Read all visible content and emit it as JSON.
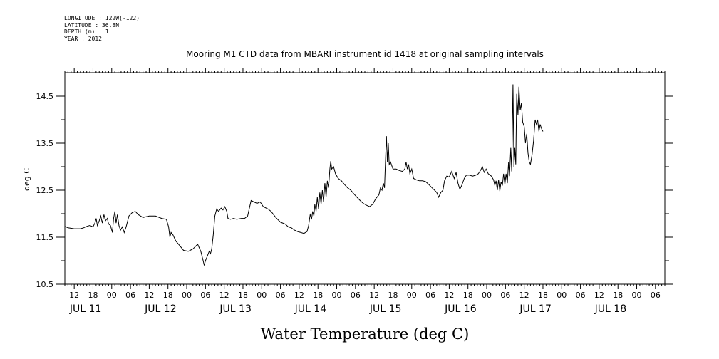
{
  "header": {
    "longitude": "LONGITUDE : 122W(-122)",
    "latitude": "LATITUDE : 36.8N",
    "depth": "DEPTH (m) : 1",
    "year": "YEAR : 2012"
  },
  "chart_data": {
    "type": "line",
    "title": "Mooring M1 CTD data from MBARI instrument id 1418 at original sampling intervals",
    "xlabel": "Water Temperature (deg C)",
    "ylabel": "deg C",
    "xlim_hours": [
      9,
      201
    ],
    "ylim": [
      10.5,
      15.0
    ],
    "yticks": [
      10.5,
      11.5,
      12.5,
      13.5,
      14.5
    ],
    "yticks_minor": [
      11.0,
      12.0,
      13.0,
      14.0
    ],
    "x_hour_ticks": [
      {
        "h": 12,
        "label": "12"
      },
      {
        "h": 18,
        "label": "18"
      },
      {
        "h": 24,
        "label": "00"
      },
      {
        "h": 30,
        "label": "06"
      },
      {
        "h": 36,
        "label": "12"
      },
      {
        "h": 42,
        "label": "18"
      },
      {
        "h": 48,
        "label": "00"
      },
      {
        "h": 54,
        "label": "06"
      },
      {
        "h": 60,
        "label": "12"
      },
      {
        "h": 66,
        "label": "18"
      },
      {
        "h": 72,
        "label": "00"
      },
      {
        "h": 78,
        "label": "06"
      },
      {
        "h": 84,
        "label": "12"
      },
      {
        "h": 90,
        "label": "18"
      },
      {
        "h": 96,
        "label": "00"
      },
      {
        "h": 102,
        "label": "06"
      },
      {
        "h": 108,
        "label": "12"
      },
      {
        "h": 114,
        "label": "18"
      },
      {
        "h": 120,
        "label": "00"
      },
      {
        "h": 126,
        "label": "06"
      },
      {
        "h": 132,
        "label": "12"
      },
      {
        "h": 138,
        "label": "18"
      },
      {
        "h": 144,
        "label": "00"
      },
      {
        "h": 150,
        "label": "06"
      },
      {
        "h": 156,
        "label": "12"
      },
      {
        "h": 162,
        "label": "18"
      },
      {
        "h": 168,
        "label": "00"
      },
      {
        "h": 174,
        "label": "06"
      },
      {
        "h": 180,
        "label": "12"
      },
      {
        "h": 186,
        "label": "18"
      },
      {
        "h": 192,
        "label": "00"
      },
      {
        "h": 198,
        "label": "06"
      }
    ],
    "x_day_labels": [
      {
        "h": 12,
        "label": "JUL 11"
      },
      {
        "h": 36,
        "label": "JUL 12"
      },
      {
        "h": 60,
        "label": "JUL 13"
      },
      {
        "h": 84,
        "label": "JUL 14"
      },
      {
        "h": 108,
        "label": "JUL 15"
      },
      {
        "h": 132,
        "label": "JUL 16"
      },
      {
        "h": 156,
        "label": "JUL 17"
      },
      {
        "h": 180,
        "label": "JUL 18"
      }
    ],
    "series": [
      {
        "color": "#000000",
        "points": [
          [
            9,
            11.73
          ],
          [
            10,
            11.7
          ],
          [
            12,
            11.68
          ],
          [
            14,
            11.68
          ],
          [
            15,
            11.7
          ],
          [
            16,
            11.73
          ],
          [
            17,
            11.75
          ],
          [
            18,
            11.72
          ],
          [
            18.6,
            11.8
          ],
          [
            19,
            11.9
          ],
          [
            19.4,
            11.75
          ],
          [
            20,
            11.85
          ],
          [
            20.5,
            11.95
          ],
          [
            21,
            11.8
          ],
          [
            21.5,
            11.98
          ],
          [
            22,
            11.85
          ],
          [
            22.6,
            11.9
          ],
          [
            23,
            11.78
          ],
          [
            23.6,
            11.75
          ],
          [
            24.2,
            11.6
          ],
          [
            24.6,
            11.9
          ],
          [
            25,
            12.05
          ],
          [
            25.4,
            11.8
          ],
          [
            25.8,
            11.98
          ],
          [
            26.3,
            11.75
          ],
          [
            26.8,
            11.65
          ],
          [
            27.4,
            11.72
          ],
          [
            28,
            11.6
          ],
          [
            28.6,
            11.72
          ],
          [
            29.5,
            11.95
          ],
          [
            30.5,
            12.02
          ],
          [
            31.5,
            12.05
          ],
          [
            32.5,
            11.98
          ],
          [
            34,
            11.92
          ],
          [
            36,
            11.95
          ],
          [
            38,
            11.95
          ],
          [
            40,
            11.9
          ],
          [
            41.5,
            11.88
          ],
          [
            42.2,
            11.72
          ],
          [
            42.6,
            11.5
          ],
          [
            43,
            11.6
          ],
          [
            43.6,
            11.55
          ],
          [
            44.5,
            11.42
          ],
          [
            46,
            11.3
          ],
          [
            47,
            11.22
          ],
          [
            48.5,
            11.2
          ],
          [
            50,
            11.25
          ],
          [
            51.5,
            11.35
          ],
          [
            52.5,
            11.2
          ],
          [
            53.2,
            11.02
          ],
          [
            53.6,
            10.9
          ],
          [
            54,
            11.0
          ],
          [
            54.6,
            11.1
          ],
          [
            55.2,
            11.2
          ],
          [
            55.6,
            11.15
          ],
          [
            56,
            11.25
          ],
          [
            56.5,
            11.55
          ],
          [
            57,
            11.95
          ],
          [
            57.6,
            12.1
          ],
          [
            58.2,
            12.05
          ],
          [
            59,
            12.12
          ],
          [
            59.6,
            12.08
          ],
          [
            60.2,
            12.15
          ],
          [
            60.8,
            12.05
          ],
          [
            61.2,
            11.9
          ],
          [
            62,
            11.88
          ],
          [
            63,
            11.9
          ],
          [
            64,
            11.88
          ],
          [
            65.5,
            11.9
          ],
          [
            66.5,
            11.9
          ],
          [
            67.5,
            11.95
          ],
          [
            68,
            12.1
          ],
          [
            68.6,
            12.28
          ],
          [
            69.5,
            12.25
          ],
          [
            70.5,
            12.22
          ],
          [
            71.5,
            12.25
          ],
          [
            72.5,
            12.15
          ],
          [
            74,
            12.1
          ],
          [
            75,
            12.05
          ],
          [
            76.5,
            11.92
          ],
          [
            78,
            11.82
          ],
          [
            79.5,
            11.78
          ],
          [
            80.5,
            11.72
          ],
          [
            81.5,
            11.7
          ],
          [
            82.5,
            11.65
          ],
          [
            83.5,
            11.62
          ],
          [
            84.5,
            11.6
          ],
          [
            85.5,
            11.58
          ],
          [
            86.5,
            11.62
          ],
          [
            87,
            11.75
          ],
          [
            87.5,
            11.98
          ],
          [
            88,
            11.9
          ],
          [
            88.3,
            12.05
          ],
          [
            88.7,
            11.95
          ],
          [
            89,
            12.2
          ],
          [
            89.4,
            12.05
          ],
          [
            89.8,
            12.35
          ],
          [
            90.2,
            12.1
          ],
          [
            90.6,
            12.45
          ],
          [
            91,
            12.2
          ],
          [
            91.4,
            12.5
          ],
          [
            91.8,
            12.25
          ],
          [
            92.2,
            12.65
          ],
          [
            92.6,
            12.35
          ],
          [
            93,
            12.7
          ],
          [
            93.4,
            12.55
          ],
          [
            93.8,
            12.95
          ],
          [
            94.1,
            13.12
          ],
          [
            94.4,
            12.95
          ],
          [
            95,
            13.0
          ],
          [
            95.6,
            12.85
          ],
          [
            96.5,
            12.75
          ],
          [
            97.5,
            12.7
          ],
          [
            98.5,
            12.62
          ],
          [
            99.5,
            12.55
          ],
          [
            100.5,
            12.5
          ],
          [
            101.5,
            12.42
          ],
          [
            102.5,
            12.35
          ],
          [
            103.5,
            12.28
          ],
          [
            104.5,
            12.22
          ],
          [
            105.5,
            12.18
          ],
          [
            106.5,
            12.15
          ],
          [
            107.5,
            12.2
          ],
          [
            108.5,
            12.32
          ],
          [
            109.5,
            12.4
          ],
          [
            110,
            12.55
          ],
          [
            110.5,
            12.5
          ],
          [
            110.9,
            12.65
          ],
          [
            111.3,
            12.55
          ],
          [
            111.6,
            13.1
          ],
          [
            111.9,
            13.65
          ],
          [
            112.2,
            13.1
          ],
          [
            112.5,
            13.5
          ],
          [
            112.8,
            13.05
          ],
          [
            113.2,
            13.1
          ],
          [
            114,
            12.95
          ],
          [
            115,
            12.95
          ],
          [
            116,
            12.92
          ],
          [
            117,
            12.9
          ],
          [
            117.8,
            12.95
          ],
          [
            118.2,
            13.1
          ],
          [
            118.6,
            12.95
          ],
          [
            119,
            13.05
          ],
          [
            119.4,
            12.85
          ],
          [
            120,
            12.95
          ],
          [
            120.6,
            12.75
          ],
          [
            121.5,
            12.72
          ],
          [
            122.5,
            12.7
          ],
          [
            123.5,
            12.7
          ],
          [
            124.5,
            12.68
          ],
          [
            125.5,
            12.62
          ],
          [
            126.5,
            12.55
          ],
          [
            127.3,
            12.5
          ],
          [
            128,
            12.45
          ],
          [
            128.6,
            12.35
          ],
          [
            129.3,
            12.45
          ],
          [
            130,
            12.5
          ],
          [
            130.5,
            12.7
          ],
          [
            131.2,
            12.8
          ],
          [
            132,
            12.78
          ],
          [
            132.8,
            12.9
          ],
          [
            133.6,
            12.75
          ],
          [
            134.2,
            12.88
          ],
          [
            134.8,
            12.65
          ],
          [
            135.4,
            12.52
          ],
          [
            136,
            12.6
          ],
          [
            136.8,
            12.75
          ],
          [
            137.5,
            12.82
          ],
          [
            138.5,
            12.82
          ],
          [
            139.5,
            12.8
          ],
          [
            140.5,
            12.82
          ],
          [
            141.3,
            12.85
          ],
          [
            142,
            12.92
          ],
          [
            142.6,
            13.0
          ],
          [
            143.2,
            12.88
          ],
          [
            143.8,
            12.95
          ],
          [
            144.5,
            12.85
          ],
          [
            145.5,
            12.8
          ],
          [
            146.2,
            12.72
          ],
          [
            146.6,
            12.6
          ],
          [
            147,
            12.7
          ],
          [
            147.4,
            12.5
          ],
          [
            147.8,
            12.72
          ],
          [
            148.2,
            12.48
          ],
          [
            148.6,
            12.68
          ],
          [
            149,
            12.6
          ],
          [
            149.4,
            12.85
          ],
          [
            149.8,
            12.62
          ],
          [
            150.2,
            12.85
          ],
          [
            150.6,
            12.65
          ],
          [
            151,
            13.1
          ],
          [
            151.3,
            12.8
          ],
          [
            151.7,
            13.4
          ],
          [
            152,
            12.9
          ],
          [
            152.4,
            14.75
          ],
          [
            152.7,
            13.0
          ],
          [
            153,
            13.4
          ],
          [
            153.3,
            13.05
          ],
          [
            153.6,
            14.55
          ],
          [
            154,
            14.1
          ],
          [
            154.3,
            14.7
          ],
          [
            154.7,
            14.2
          ],
          [
            155.1,
            14.35
          ],
          [
            155.5,
            13.95
          ],
          [
            156,
            13.85
          ],
          [
            156.4,
            13.5
          ],
          [
            156.8,
            13.7
          ],
          [
            157.2,
            13.3
          ],
          [
            157.6,
            13.1
          ],
          [
            158,
            13.05
          ],
          [
            158.5,
            13.25
          ],
          [
            159,
            13.55
          ],
          [
            159.5,
            14.0
          ],
          [
            159.9,
            13.9
          ],
          [
            160.3,
            14.0
          ],
          [
            160.7,
            13.75
          ],
          [
            161.1,
            13.9
          ],
          [
            161.6,
            13.8
          ],
          [
            162,
            13.75
          ]
        ]
      }
    ]
  }
}
